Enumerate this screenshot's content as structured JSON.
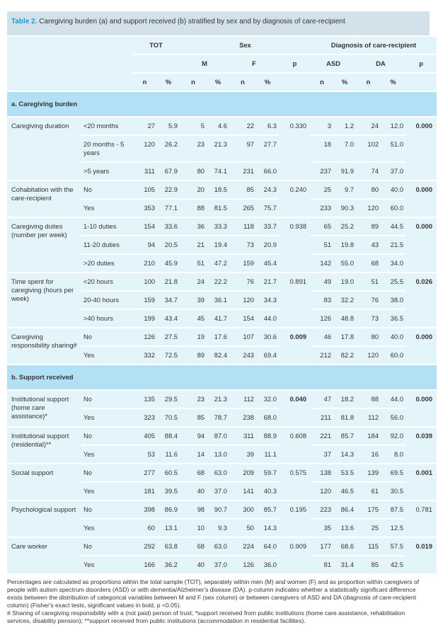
{
  "title": {
    "label": "Table 2.",
    "text": "Caregiving burden (a) and support received (b) stratified by sex and by diagnosis of care-recipient"
  },
  "header": {
    "tot": "TOT",
    "sex": "Sex",
    "diag": "Diagnosis of care-recipient",
    "m": "M",
    "f": "F",
    "p": "p",
    "asd": "ASD",
    "da": "DA",
    "n": "n",
    "pct": "%"
  },
  "sections": [
    {
      "title": "a. Caregiving burden",
      "groups": [
        {
          "label": "Caregiving duration",
          "p_sex": "0.330",
          "p_sex_bold": false,
          "p_diag": "0.000",
          "p_diag_bold": true,
          "rows": [
            [
              "<20 months",
              "27",
              "5.9",
              "5",
              "4.6",
              "22",
              "6.3",
              "3",
              "1.2",
              "24",
              "12.0"
            ],
            [
              "20 months - 5 years",
              "120",
              "26.2",
              "23",
              "21.3",
              "97",
              "27.7",
              "18",
              "7.0",
              "102",
              "51.0"
            ],
            [
              ">5 years",
              "311",
              "67.9",
              "80",
              "74.1",
              "231",
              "66.0",
              "237",
              "91.9",
              "74",
              "37.0"
            ]
          ]
        },
        {
          "label": "Cohabitation with the care-recipient",
          "p_sex": "0.240",
          "p_sex_bold": false,
          "p_diag": "0.000",
          "p_diag_bold": true,
          "rows": [
            [
              "No",
              "105",
              "22.9",
              "20",
              "18.5",
              "85",
              "24.3",
              "25",
              "9.7",
              "80",
              "40.0"
            ],
            [
              "Yes",
              "353",
              "77.1",
              "88",
              "81.5",
              "265",
              "75.7",
              "233",
              "90.3",
              "120",
              "60.0"
            ]
          ]
        },
        {
          "label": "Caregiving duties (number per week)",
          "p_sex": "0.938",
          "p_sex_bold": false,
          "p_diag": "0.000",
          "p_diag_bold": true,
          "rows": [
            [
              "1-10 duties",
              "154",
              "33.6",
              "36",
              "33.3",
              "118",
              "33.7",
              "65",
              "25.2",
              "89",
              "44.5"
            ],
            [
              "11-20 duties",
              "94",
              "20.5",
              "21",
              "19.4",
              "73",
              "20.9",
              "51",
              "19.8",
              "43",
              "21.5"
            ],
            [
              ">20 duties",
              "210",
              "45.9",
              "51",
              "47.2",
              "159",
              "45.4",
              "142",
              "55.0",
              "68",
              "34.0"
            ]
          ]
        },
        {
          "label": "Time spent for caregiving (hours per week)",
          "p_sex": "0.891",
          "p_sex_bold": false,
          "p_diag": "0.026",
          "p_diag_bold": true,
          "rows": [
            [
              "<20 hours",
              "100",
              "21.8",
              "24",
              "22.2",
              "76",
              "21.7",
              "49",
              "19.0",
              "51",
              "25.5"
            ],
            [
              "20-40 hours",
              "159",
              "34.7",
              "39",
              "36.1",
              "120",
              "34.3",
              "83",
              "32.2",
              "76",
              "38.0"
            ],
            [
              ">40 hours",
              "199",
              "43.4",
              "45",
              "41.7",
              "154",
              "44.0",
              "126",
              "48.8",
              "73",
              "36.5"
            ]
          ]
        },
        {
          "label": "Caregiving responsibility sharing#",
          "p_sex": "0.009",
          "p_sex_bold": true,
          "p_diag": "0.000",
          "p_diag_bold": true,
          "rows": [
            [
              "No",
              "126",
              "27.5",
              "19",
              "17.6",
              "107",
              "30.6",
              "46",
              "17.8",
              "80",
              "40.0"
            ],
            [
              "Yes",
              "332",
              "72.5",
              "89",
              "82.4",
              "243",
              "69.4",
              "212",
              "82.2",
              "120",
              "60.0"
            ]
          ]
        }
      ]
    },
    {
      "title": "b. Support received",
      "groups": [
        {
          "label": "Institutional support (home care assistance)*",
          "p_sex": "0.040",
          "p_sex_bold": true,
          "p_diag": "0.000",
          "p_diag_bold": true,
          "rows": [
            [
              "No",
              "135",
              "29.5",
              "23",
              "21.3",
              "112",
              "32.0",
              "47",
              "18.2",
              "88",
              "44.0"
            ],
            [
              "Yes",
              "323",
              "70.5",
              "85",
              "78.7",
              "238",
              "68.0",
              "211",
              "81.8",
              "112",
              "56.0"
            ]
          ]
        },
        {
          "label": "Institutional support (residential)**",
          "p_sex": "0.608",
          "p_sex_bold": false,
          "p_diag": "0.039",
          "p_diag_bold": true,
          "rows": [
            [
              "No",
              "405",
              "88.4",
              "94",
              "87.0",
              "311",
              "88.9",
              "221",
              "85.7",
              "184",
              "92.0"
            ],
            [
              "Yes",
              "53",
              "11.6",
              "14",
              "13.0",
              "39",
              "11.1",
              "37",
              "14.3",
              "16",
              "8.0"
            ]
          ]
        },
        {
          "label": "Social support",
          "p_sex": "0.575",
          "p_sex_bold": false,
          "p_diag": "0.001",
          "p_diag_bold": true,
          "rows": [
            [
              "No",
              "277",
              "60.5",
              "68",
              "63.0",
              "209",
              "59.7",
              "138",
              "53.5",
              "139",
              "69.5"
            ],
            [
              "Yes",
              "181",
              "39.5",
              "40",
              "37.0",
              "141",
              "40.3",
              "120",
              "46.5",
              "61",
              "30.5"
            ]
          ]
        },
        {
          "label": "Psychological support",
          "p_sex": "0.195",
          "p_sex_bold": false,
          "p_diag": "0.781",
          "p_diag_bold": false,
          "rows": [
            [
              "No",
              "398",
              "86.9",
              "98",
              "90.7",
              "300",
              "85.7",
              "223",
              "86.4",
              "175",
              "87.5"
            ],
            [
              "Yes",
              "60",
              "13.1",
              "10",
              "9.3",
              "50",
              "14.3",
              "35",
              "13.6",
              "25",
              "12.5"
            ]
          ]
        },
        {
          "label": "Care worker",
          "p_sex": "0.909",
          "p_sex_bold": false,
          "p_diag": "0.019",
          "p_diag_bold": true,
          "rows": [
            [
              "No",
              "292",
              "63.8",
              "68",
              "63.0",
              "224",
              "64.0",
              "177",
              "68.6",
              "115",
              "57.5"
            ],
            [
              "Yes",
              "166",
              "36.2",
              "40",
              "37.0",
              "126",
              "36.0",
              "81",
              "31.4",
              "85",
              "42.5"
            ]
          ]
        }
      ]
    }
  ],
  "footnotes": [
    "Percentages are calculated as proportions within the total sample (TOT), separately within men (M) and women (F) and as proportion within caregivers of people with autism spectrum disorders (ASD) or with dementia/Alzheimer's disease (DA). p-column indicates whether a statistically significant difference exists between the distribution of categorical variables between M and F (sex column) or between caregivers of ASD and DA (diagnosis of care-recipient column) (Fisher's exact tests, significant values in bold, p <0.05).",
    "# Sharing of caregiving responsibility with a (not paid) person of trust; *support received from public institutions (home care assistance, rehabilitation services, disability pension); **support received from public institutions (accommodation in residential facilities)."
  ]
}
